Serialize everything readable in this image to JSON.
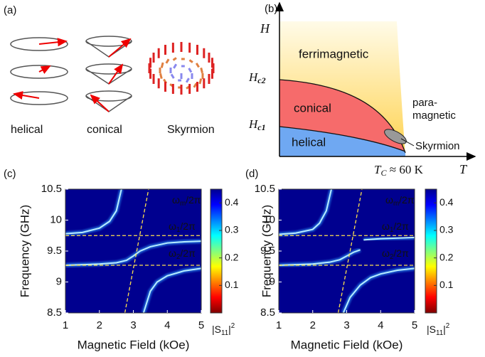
{
  "panel_a": {
    "label": "(a)",
    "captions": [
      "helical",
      "conical",
      "Skyrmion"
    ]
  },
  "panel_b": {
    "label": "(b)",
    "y_axis": "H",
    "x_axis": "T",
    "hc2": {
      "main": "H",
      "sub": "c2"
    },
    "hc1": {
      "main": "H",
      "sub": "c1"
    },
    "tc": {
      "main": "T",
      "sub": "C",
      "rest": " ≈ 60 K"
    },
    "phases": [
      "ferrimagnetic",
      "conical",
      "helical",
      "Skyrmion"
    ],
    "paramagnetic": [
      "para-",
      "magnetic"
    ]
  },
  "chart_data": [
    {
      "type": "heatmap",
      "label": "(c)",
      "xlabel": "Magnetic Field (kOe)",
      "ylabel": "Frequency (GHz)",
      "xlim": [
        1,
        5
      ],
      "xticks": [
        1,
        2,
        3,
        4,
        5
      ],
      "ylim": [
        8.5,
        10.5
      ],
      "yticks": [
        8.5,
        9,
        9.5,
        10,
        10.5
      ],
      "background": "#00008f",
      "line_color": "#b8ecff",
      "guide_color": "#ffe14d",
      "series": [
        {
          "x": [
            1,
            1.5,
            2,
            2.3,
            2.5,
            2.65
          ],
          "values": [
            9.78,
            9.8,
            9.87,
            9.98,
            10.15,
            10.5
          ]
        },
        {
          "x": [
            1,
            2,
            2.5,
            2.8,
            3,
            3.2,
            3.5,
            4,
            4.5,
            5
          ],
          "values": [
            9.27,
            9.29,
            9.31,
            9.35,
            9.42,
            9.5,
            9.57,
            9.63,
            9.65,
            9.66
          ]
        },
        {
          "x": [
            3.3,
            3.5,
            3.7,
            4,
            4.5,
            5
          ],
          "values": [
            8.5,
            8.85,
            9.0,
            9.1,
            9.18,
            9.22
          ]
        }
      ],
      "guides": [
        {
          "x": [
            2.75,
            3.45
          ],
          "values": [
            8.5,
            10.5
          ]
        },
        {
          "x": [
            1,
            5
          ],
          "values": [
            9.75,
            9.75
          ]
        },
        {
          "x": [
            1,
            5
          ],
          "values": [
            9.27,
            9.27
          ]
        }
      ],
      "guide_labels": [
        {
          "main": "ω",
          "sub": "m",
          "rest": "/2π"
        },
        {
          "main": "ω",
          "sub": "1",
          "rest": "/2π"
        },
        {
          "main": "ω",
          "sub": "2",
          "rest": "/2π"
        }
      ],
      "colorbar": {
        "clim": [
          0,
          0.45
        ],
        "ticks": [
          0.1,
          0.2,
          0.3,
          0.4
        ],
        "colors": [
          "#800000",
          "#ff0000",
          "#ff8000",
          "#ffff00",
          "#80ff80",
          "#00ffff",
          "#0080ff",
          "#0000ff",
          "#00008f"
        ],
        "label": {
          "main": "|S",
          "sub": "11",
          "rest": "|",
          "sup": "2"
        }
      }
    },
    {
      "type": "heatmap",
      "label": "(d)",
      "xlabel": "Magnetic Field (kOe)",
      "ylabel": "Frequency (GHz)",
      "xlim": [
        1,
        5
      ],
      "xticks": [
        1,
        2,
        3,
        4,
        5
      ],
      "ylim": [
        8.5,
        10.5
      ],
      "yticks": [
        8.5,
        9,
        9.5,
        10,
        10.5
      ],
      "background": "#00008f",
      "line_color": "#b8ecff",
      "guide_color": "#ffe14d",
      "series": [
        {
          "x": [
            1,
            1.5,
            2,
            2.2,
            2.4,
            2.55
          ],
          "values": [
            9.77,
            9.79,
            9.85,
            9.95,
            10.15,
            10.5
          ]
        },
        {
          "x": [
            1,
            2,
            2.5,
            2.8,
            3,
            3.2,
            3.4
          ],
          "values": [
            9.27,
            9.29,
            9.32,
            9.36,
            9.42,
            9.48,
            9.52
          ]
        },
        {
          "x": [
            3.5,
            4,
            4.5,
            5
          ],
          "values": [
            9.68,
            9.7,
            9.71,
            9.72
          ]
        },
        {
          "x": [
            2.9,
            3.1,
            3.4,
            3.7,
            4,
            4.5,
            5
          ],
          "values": [
            8.5,
            8.75,
            8.95,
            9.07,
            9.13,
            9.19,
            9.22
          ]
        }
      ],
      "guides": [
        {
          "x": [
            2.75,
            3.45
          ],
          "values": [
            8.5,
            10.5
          ]
        },
        {
          "x": [
            1,
            5
          ],
          "values": [
            9.75,
            9.75
          ]
        },
        {
          "x": [
            1,
            5
          ],
          "values": [
            9.27,
            9.27
          ]
        }
      ],
      "guide_labels": [
        {
          "main": "ω",
          "sub": "m",
          "rest": "/2π"
        },
        {
          "main": "ω",
          "sub": "1",
          "rest": "/2π"
        },
        {
          "main": "ω",
          "sub": "2",
          "rest": "/2π"
        }
      ],
      "colorbar": {
        "clim": [
          0,
          0.45
        ],
        "ticks": [
          0.1,
          0.2,
          0.3,
          0.4
        ],
        "colors": [
          "#800000",
          "#ff0000",
          "#ff8000",
          "#ffff00",
          "#80ff80",
          "#00ffff",
          "#0080ff",
          "#0000ff",
          "#00008f"
        ],
        "label": {
          "main": "|S",
          "sub": "11",
          "rest": "|",
          "sup": "2"
        }
      }
    }
  ]
}
